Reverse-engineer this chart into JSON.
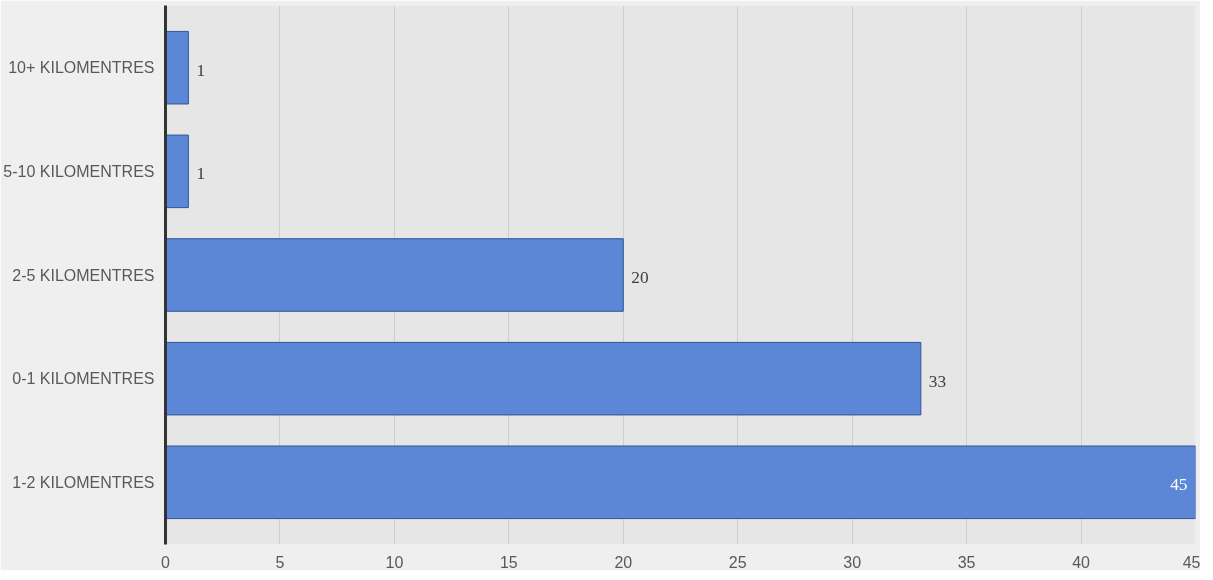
{
  "chart_data": {
    "type": "bar",
    "orientation": "horizontal",
    "categories": [
      "10+ KILOMENTRES",
      "5-10 KILOMENTRES",
      "2-5 KILOMENTRES",
      "0-1 KILOMENTRES",
      "1-2 KILOMENTRES"
    ],
    "values": [
      1,
      1,
      20,
      33,
      45
    ],
    "color": "#5b87d6",
    "xlim": [
      0,
      45
    ],
    "xticks": [
      0,
      5,
      10,
      15,
      20,
      25,
      30,
      35,
      40,
      45
    ],
    "grid": "x",
    "data_labels": true
  }
}
